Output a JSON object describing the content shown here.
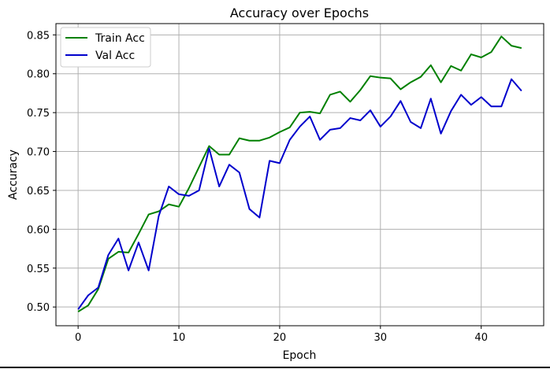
{
  "chart_data": {
    "type": "line",
    "title": "Accuracy over Epochs",
    "xlabel": "Epoch",
    "ylabel": "Accuracy",
    "xlim": [
      -2.2,
      46.2
    ],
    "ylim": [
      0.4759,
      0.8645
    ],
    "xticks": [
      0,
      10,
      20,
      30,
      40
    ],
    "xtick_labels": [
      "0",
      "10",
      "20",
      "30",
      "40"
    ],
    "yticks": [
      0.5,
      0.55,
      0.6,
      0.65,
      0.7,
      0.75,
      0.8,
      0.85
    ],
    "ytick_labels": [
      "0.50",
      "0.55",
      "0.60",
      "0.65",
      "0.70",
      "0.75",
      "0.80",
      "0.85"
    ],
    "grid": true,
    "legend_position": "top-left",
    "x": [
      0,
      1,
      2,
      3,
      4,
      5,
      6,
      7,
      8,
      9,
      10,
      11,
      12,
      13,
      14,
      15,
      16,
      17,
      18,
      19,
      20,
      21,
      22,
      23,
      24,
      25,
      26,
      27,
      28,
      29,
      30,
      31,
      32,
      33,
      34,
      35,
      36,
      37,
      38,
      39,
      40,
      41,
      42,
      43,
      44
    ],
    "series": [
      {
        "name": "Train Acc",
        "color": "#008000",
        "values": [
          0.494,
          0.502,
          0.523,
          0.562,
          0.571,
          0.57,
          0.594,
          0.619,
          0.623,
          0.632,
          0.629,
          0.653,
          0.68,
          0.707,
          0.696,
          0.696,
          0.717,
          0.714,
          0.714,
          0.718,
          0.725,
          0.731,
          0.75,
          0.751,
          0.749,
          0.773,
          0.777,
          0.764,
          0.779,
          0.797,
          0.795,
          0.794,
          0.78,
          0.789,
          0.796,
          0.811,
          0.789,
          0.81,
          0.804,
          0.825,
          0.821,
          0.828,
          0.848,
          0.836,
          0.833
        ]
      },
      {
        "name": "Val Acc",
        "color": "#0000cc",
        "values": [
          0.497,
          0.515,
          0.525,
          0.567,
          0.588,
          0.547,
          0.583,
          0.547,
          0.617,
          0.655,
          0.645,
          0.643,
          0.65,
          0.704,
          0.655,
          0.683,
          0.673,
          0.626,
          0.615,
          0.688,
          0.685,
          0.715,
          0.732,
          0.745,
          0.715,
          0.728,
          0.73,
          0.743,
          0.74,
          0.753,
          0.732,
          0.745,
          0.765,
          0.738,
          0.73,
          0.768,
          0.723,
          0.752,
          0.773,
          0.76,
          0.77,
          0.758,
          0.758,
          0.793,
          0.778
        ]
      }
    ]
  }
}
